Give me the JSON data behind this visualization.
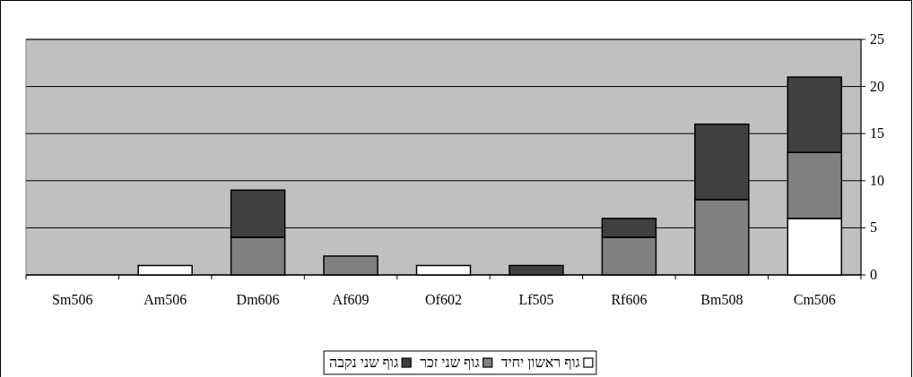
{
  "chart_data": {
    "type": "bar",
    "stacked": true,
    "categories": [
      "Sm506",
      "Am506",
      "Dm606",
      "Af609",
      "Of602",
      "Lf505",
      "Rf606",
      "Bm508",
      "Cm506"
    ],
    "series": [
      {
        "name": "גוף ראשון יחיד",
        "color": "#ffffff",
        "values": [
          0,
          1,
          0,
          0,
          1,
          0,
          0,
          0,
          6
        ]
      },
      {
        "name": "גוף שני זכר",
        "color": "#808080",
        "values": [
          0,
          0,
          4,
          2,
          0,
          0,
          4,
          8,
          7
        ]
      },
      {
        "name": "גוף שני נקבה",
        "color": "#404040",
        "values": [
          0,
          0,
          5,
          0,
          0,
          1,
          2,
          8,
          8
        ]
      }
    ],
    "ylim": [
      0,
      25
    ],
    "yticks": [
      0,
      5,
      10,
      15,
      20,
      25
    ],
    "grid": "y",
    "legend": "bottom"
  }
}
